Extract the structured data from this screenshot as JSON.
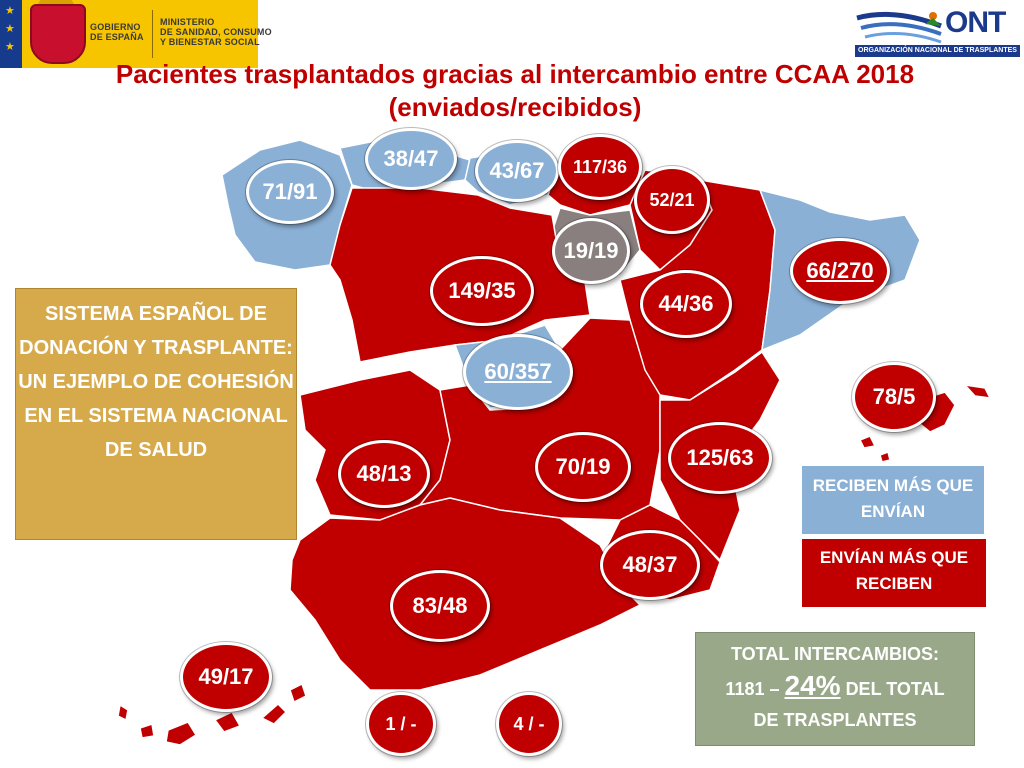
{
  "header": {
    "gov_line1": "GOBIERNO",
    "gov_line2": "DE ESPAÑA",
    "ministry_line1": "MINISTERIO",
    "ministry_line2": "DE SANIDAD, CONSUMO",
    "ministry_line3": "Y BIENESTAR SOCIAL",
    "ont_logo_text": "ONT",
    "ont_full_name": "ORGANIZACIÓN NACIONAL DE TRASPLANTES"
  },
  "title": {
    "line1": "Pacientes trasplantados gracias al intercambio entre CCAA 2018",
    "line2": "(enviados/recibidos)"
  },
  "regions": {
    "galicia": "71/91",
    "asturias": "38/47",
    "cantabria": "43/67",
    "pais_vasco": "117/36",
    "navarra": "52/21",
    "la_rioja": "19/19",
    "aragon": "44/36",
    "cataluna": "66/270",
    "castilla_leon": "149/35",
    "madrid": "60/357",
    "baleares": "78/5",
    "extremadura": "48/13",
    "castilla_la_mancha": "70/19",
    "valencia": "125/63",
    "murcia": "48/37",
    "andalucia": "83/48",
    "canarias": "49/17",
    "ceuta": "1 / -",
    "melilla": "4 / -"
  },
  "info_box": {
    "text": "SISTEMA ESPAÑOL DE DONACIÓN Y TRASPLANTE: UN EJEMPLO DE COHESIÓN EN EL SISTEMA NACIONAL DE SALUD"
  },
  "legend": {
    "blue_label": "RECIBEN MÁS QUE ENVÍAN",
    "red_label": "ENVÍAN MÁS QUE RECIBEN",
    "blue_color": "#8ab0d6",
    "red_color": "#c00000"
  },
  "total": {
    "line1": "TOTAL INTERCAMBIOS:",
    "count": "1181 –",
    "pct": "24%",
    "line2_tail": "DEL TOTAL",
    "line3": "DE TRASPLANTES"
  }
}
